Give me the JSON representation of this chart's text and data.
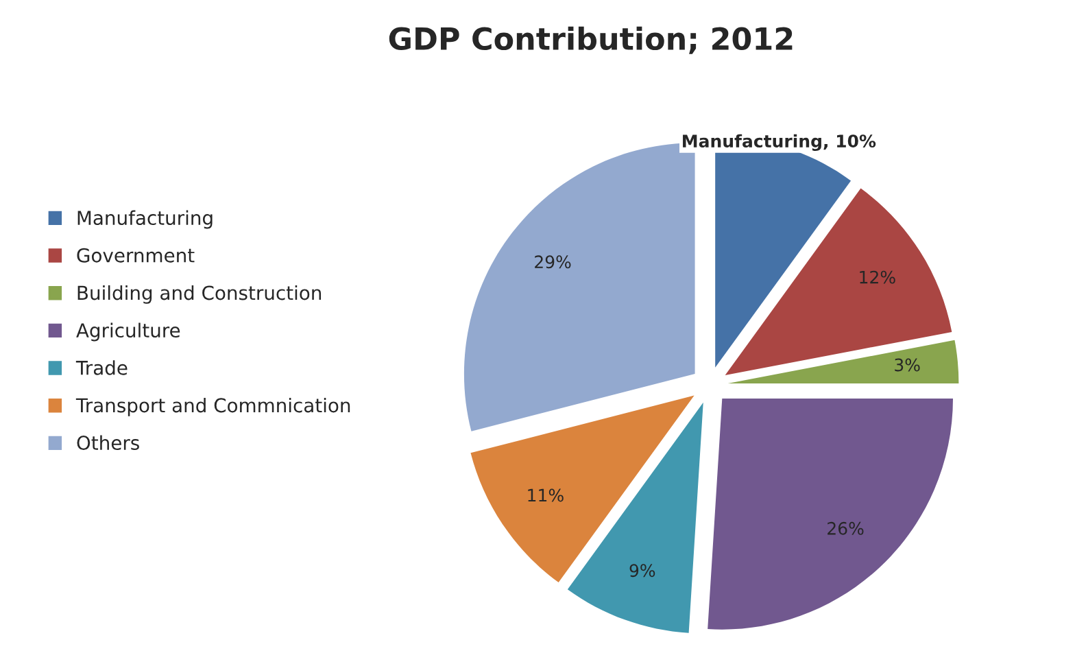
{
  "chart_data": {
    "type": "pie",
    "title": "GDP Contribution; 2012",
    "categories": [
      "Manufacturing",
      "Government",
      "Building and Construction",
      "Agriculture",
      "Trade",
      "Transport and Commnication",
      "Others"
    ],
    "values": [
      10,
      12,
      3,
      26,
      9,
      11,
      29
    ],
    "colors": [
      "#4572a7",
      "#aa4643",
      "#89a54e",
      "#71588f",
      "#4198af",
      "#db843d",
      "#93a9cf"
    ],
    "value_labels": [
      "Manufacturing, 10%",
      "12%",
      "3%",
      "26%",
      "9%",
      "11%",
      "29%"
    ],
    "legend": "left"
  }
}
